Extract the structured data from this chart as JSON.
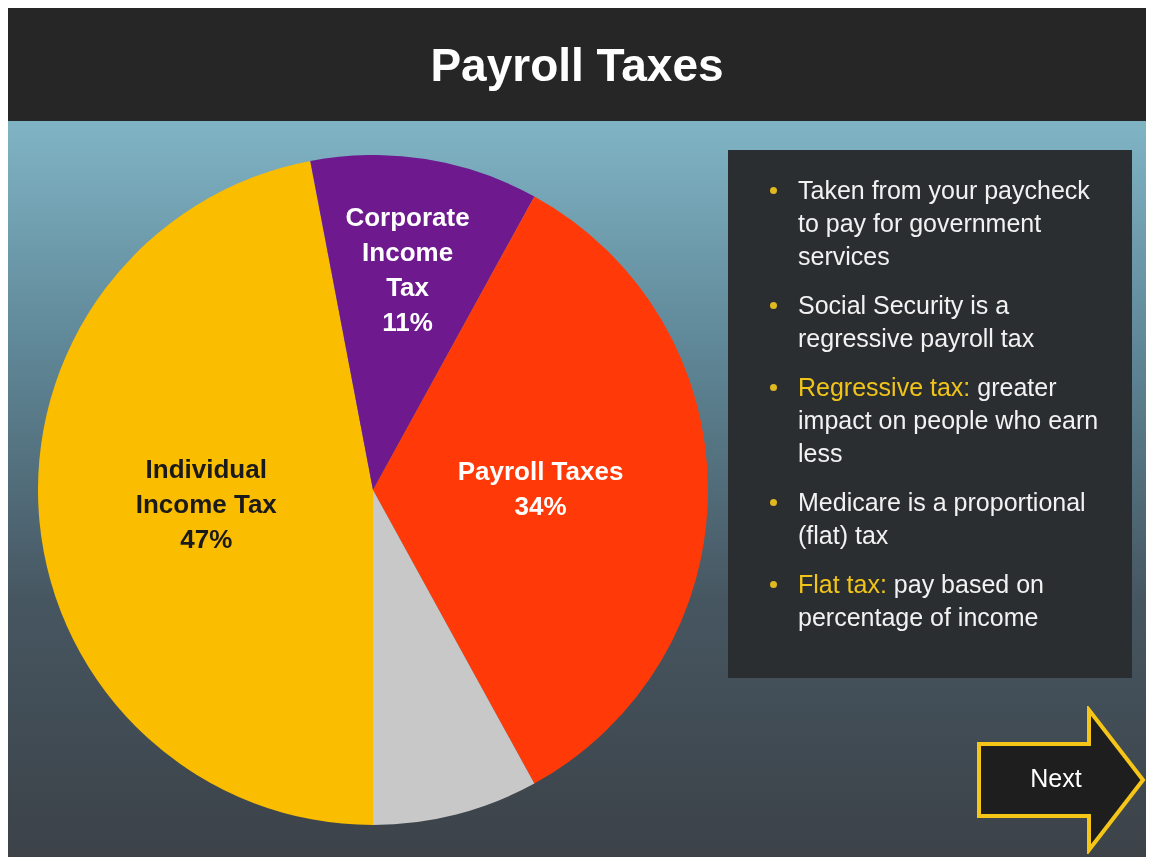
{
  "chart_data": {
    "type": "pie",
    "title": "Payroll Taxes",
    "categories": [
      "Individual Income Tax",
      "Corporate Income Tax",
      "Payroll Taxes",
      null
    ],
    "values": [
      47,
      11,
      34,
      8
    ],
    "colors": [
      "#fbbd00",
      "#6e1a8e",
      "#ff3a08",
      "#c8c8c8"
    ],
    "value_labels": [
      "47%",
      "11%",
      "34%",
      null
    ],
    "annotations": [
      "Taken from your paycheck to pay for government services",
      "Social Security is a regressive payroll tax",
      "Regressive tax: greater impact on people who earn less",
      "Medicare is a proportional (flat) tax",
      "Flat tax: pay based on percentage of income",
      "Next"
    ]
  }
}
